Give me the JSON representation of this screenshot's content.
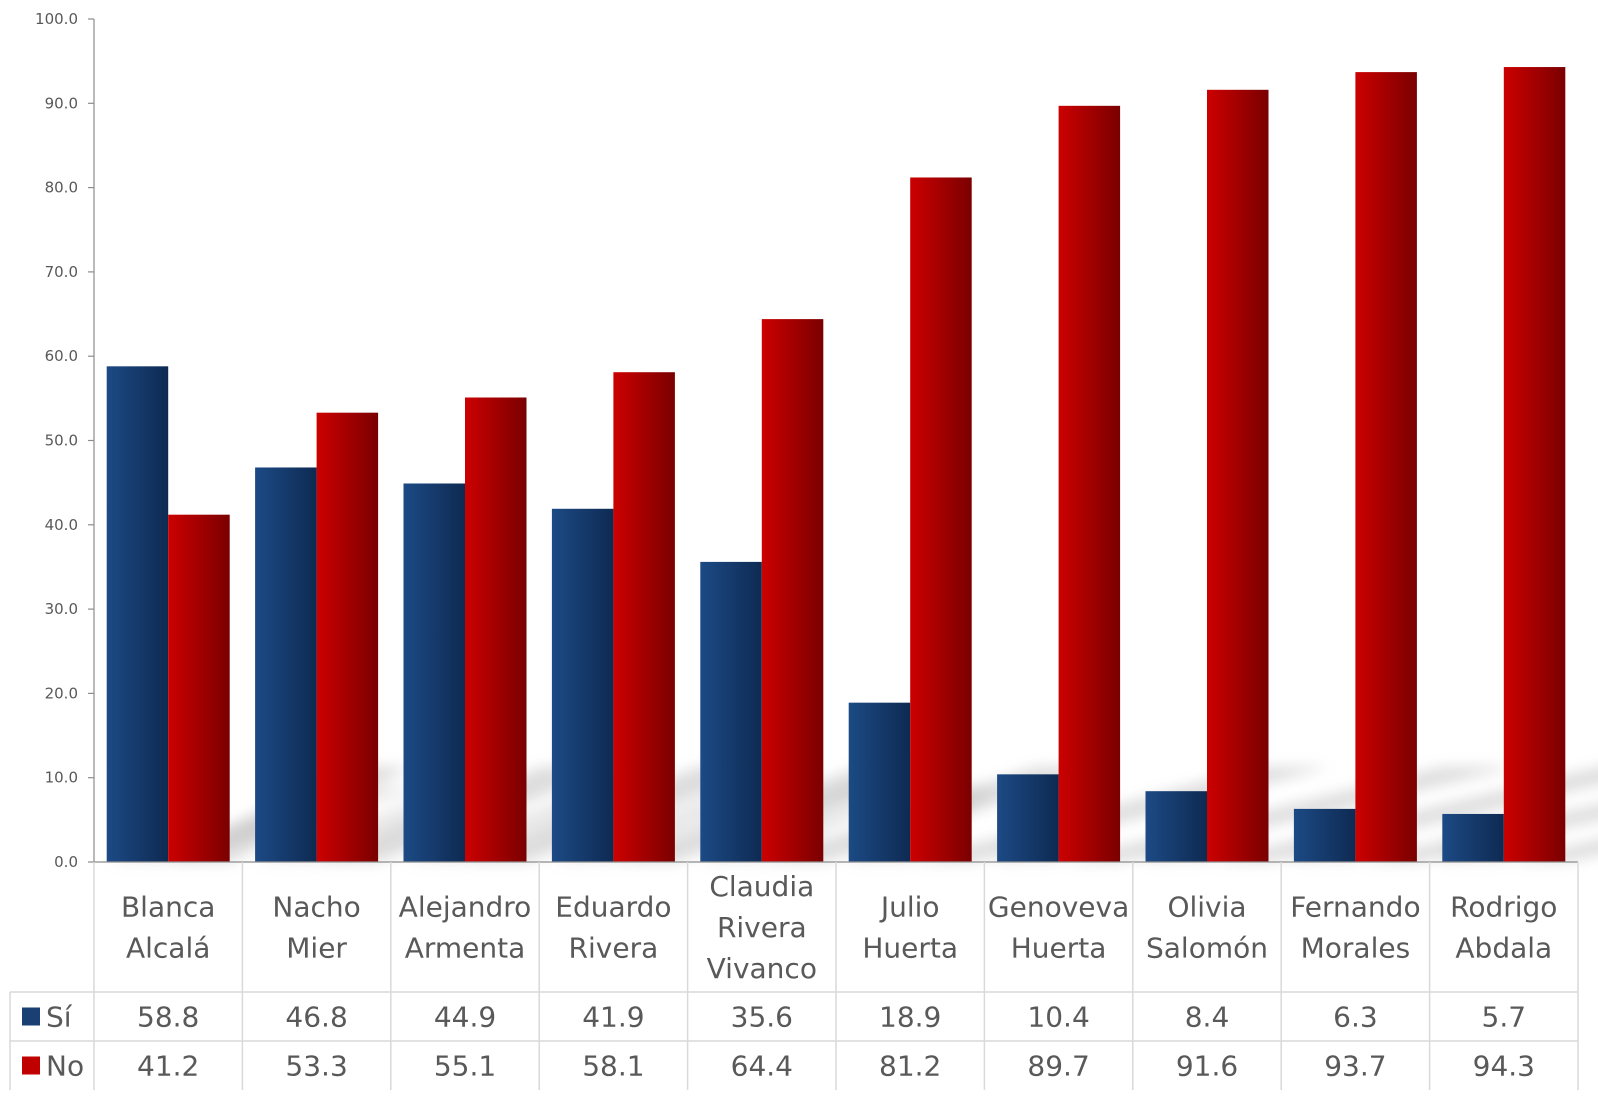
{
  "chart_data": {
    "type": "bar",
    "title": "",
    "xlabel": "",
    "ylabel": "",
    "ylim": [
      0,
      100
    ],
    "yticks": [
      "0.0",
      "10.0",
      "20.0",
      "30.0",
      "40.0",
      "50.0",
      "60.0",
      "70.0",
      "80.0",
      "90.0",
      "100.0"
    ],
    "categories": [
      [
        "Blanca",
        "Alcalá"
      ],
      [
        "Nacho",
        "Mier"
      ],
      [
        "Alejandro",
        "Armenta"
      ],
      [
        "Eduardo",
        "Rivera"
      ],
      [
        "Claudia",
        "Rivera",
        "Vivanco"
      ],
      [
        "Julio",
        "Huerta"
      ],
      [
        "Genoveva",
        "Huerta"
      ],
      [
        "Olivia",
        "Salomón"
      ],
      [
        "Fernando",
        "Morales"
      ],
      [
        "Rodrigo",
        "Abdala"
      ]
    ],
    "series": [
      {
        "name": "Sí",
        "color": "#1a3f73",
        "values": [
          58.8,
          46.8,
          44.9,
          41.9,
          35.6,
          18.9,
          10.4,
          8.4,
          6.3,
          5.7
        ],
        "labels": [
          "58.8",
          "46.8",
          "44.9",
          "41.9",
          "35.6",
          "18.9",
          "10.4",
          "8.4",
          "6.3",
          "5.7"
        ]
      },
      {
        "name": "No",
        "color": "#c00000",
        "values": [
          41.2,
          53.3,
          55.1,
          58.1,
          64.4,
          81.2,
          89.7,
          91.6,
          93.7,
          94.3
        ],
        "labels": [
          "41.2",
          "53.3",
          "55.1",
          "58.1",
          "64.4",
          "81.2",
          "89.7",
          "91.6",
          "93.7",
          "94.3"
        ]
      }
    ],
    "data_table": true,
    "grid": false,
    "legend": "data-table-left"
  }
}
